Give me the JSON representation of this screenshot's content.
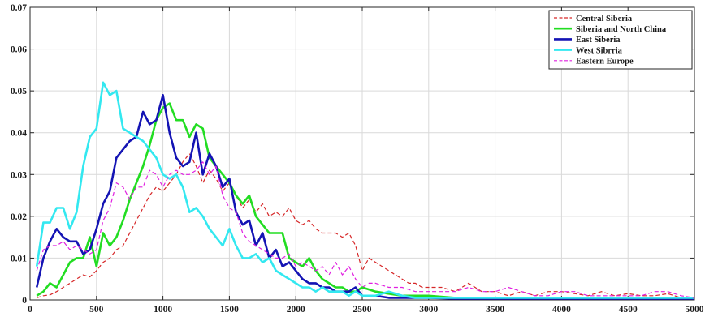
{
  "chart_data": {
    "type": "line",
    "title": "",
    "xlabel": "",
    "ylabel": "",
    "xlim": [
      0,
      5000
    ],
    "ylim": [
      0,
      0.07
    ],
    "grid": true,
    "legend_position": "top-right",
    "xticks": [
      0,
      500,
      1000,
      1500,
      2000,
      2500,
      3000,
      3500,
      4000,
      4500,
      5000
    ],
    "xtick_labels": [
      "0",
      "500",
      "1000",
      "1500",
      "2000",
      "2500",
      "3000",
      "3500",
      "4000",
      "4500",
      "5000"
    ],
    "yticks": [
      0,
      0.01,
      0.02,
      0.03,
      0.04,
      0.05,
      0.06,
      0.07
    ],
    "ytick_labels": [
      "0",
      "0.01",
      "0.02",
      "0.03",
      "0.04",
      "0.05",
      "0.06",
      "0.07"
    ],
    "series": [
      {
        "name": "Central Siberia",
        "color": "#d62728",
        "dash": "dashed",
        "x": [
          50,
          100,
          150,
          200,
          250,
          300,
          350,
          400,
          450,
          500,
          550,
          600,
          650,
          700,
          750,
          800,
          850,
          900,
          950,
          1000,
          1050,
          1100,
          1150,
          1200,
          1250,
          1300,
          1350,
          1400,
          1450,
          1500,
          1550,
          1600,
          1650,
          1700,
          1750,
          1800,
          1850,
          1900,
          1950,
          2000,
          2050,
          2100,
          2150,
          2200,
          2250,
          2300,
          2350,
          2400,
          2450,
          2500,
          2550,
          2600,
          2650,
          2700,
          2750,
          2800,
          2850,
          2900,
          2950,
          3000,
          3100,
          3200,
          3300,
          3400,
          3500,
          3600,
          3700,
          3800,
          3900,
          4000,
          4100,
          4200,
          4300,
          4400,
          4500,
          4600,
          4700,
          4800,
          4900,
          5000
        ],
        "y": [
          0.0005,
          0.001,
          0.0012,
          0.002,
          0.003,
          0.004,
          0.005,
          0.006,
          0.0055,
          0.007,
          0.009,
          0.01,
          0.012,
          0.013,
          0.016,
          0.019,
          0.022,
          0.025,
          0.027,
          0.026,
          0.028,
          0.03,
          0.033,
          0.035,
          0.032,
          0.028,
          0.031,
          0.029,
          0.026,
          0.028,
          0.025,
          0.022,
          0.024,
          0.021,
          0.023,
          0.02,
          0.021,
          0.02,
          0.022,
          0.019,
          0.018,
          0.019,
          0.017,
          0.016,
          0.016,
          0.016,
          0.015,
          0.016,
          0.013,
          0.007,
          0.01,
          0.009,
          0.008,
          0.007,
          0.006,
          0.005,
          0.004,
          0.004,
          0.003,
          0.003,
          0.003,
          0.002,
          0.004,
          0.002,
          0.002,
          0.001,
          0.002,
          0.001,
          0.002,
          0.002,
          0.0015,
          0.001,
          0.002,
          0.001,
          0.0015,
          0.001,
          0.001,
          0.0015,
          0.0005,
          0.0005
        ]
      },
      {
        "name": "Siberia and North China",
        "color": "#22dd22",
        "dash": "solid",
        "x": [
          50,
          100,
          150,
          200,
          250,
          300,
          350,
          400,
          450,
          500,
          550,
          600,
          650,
          700,
          750,
          800,
          850,
          900,
          950,
          1000,
          1050,
          1100,
          1150,
          1200,
          1250,
          1300,
          1350,
          1400,
          1450,
          1500,
          1550,
          1600,
          1650,
          1700,
          1750,
          1800,
          1850,
          1900,
          1950,
          2000,
          2050,
          2100,
          2150,
          2200,
          2250,
          2300,
          2350,
          2400,
          2450,
          2500,
          2600,
          2700,
          2800,
          2900,
          3000,
          3200,
          3400,
          3600,
          3800,
          4000,
          4200,
          4400,
          4600,
          4800,
          5000
        ],
        "y": [
          0.001,
          0.002,
          0.004,
          0.003,
          0.006,
          0.009,
          0.01,
          0.01,
          0.015,
          0.008,
          0.016,
          0.013,
          0.015,
          0.019,
          0.024,
          0.028,
          0.032,
          0.037,
          0.043,
          0.046,
          0.047,
          0.043,
          0.043,
          0.039,
          0.042,
          0.041,
          0.034,
          0.032,
          0.03,
          0.028,
          0.025,
          0.023,
          0.025,
          0.02,
          0.018,
          0.016,
          0.016,
          0.016,
          0.01,
          0.009,
          0.008,
          0.01,
          0.007,
          0.005,
          0.004,
          0.003,
          0.003,
          0.002,
          0.002,
          0.003,
          0.002,
          0.0015,
          0.001,
          0.001,
          0.001,
          0.0005,
          0.0005,
          0.0005,
          0.0005,
          0.0005,
          0.0005,
          0.0005,
          0.0005,
          0.0005,
          0.0005
        ]
      },
      {
        "name": "East Siberia",
        "color": "#1414b4",
        "dash": "solid",
        "x": [
          50,
          100,
          150,
          200,
          250,
          300,
          350,
          400,
          450,
          500,
          550,
          600,
          650,
          700,
          750,
          800,
          850,
          900,
          950,
          1000,
          1050,
          1100,
          1150,
          1200,
          1250,
          1300,
          1350,
          1400,
          1450,
          1500,
          1550,
          1600,
          1650,
          1700,
          1750,
          1800,
          1850,
          1900,
          1950,
          2000,
          2050,
          2100,
          2150,
          2200,
          2250,
          2300,
          2350,
          2400,
          2450,
          2500,
          2600,
          2700,
          2800,
          2900,
          3000,
          3200,
          3400,
          3600,
          3800,
          4000,
          4200,
          4400,
          4600,
          4800,
          5000
        ],
        "y": [
          0.003,
          0.01,
          0.014,
          0.017,
          0.015,
          0.014,
          0.014,
          0.011,
          0.012,
          0.017,
          0.023,
          0.026,
          0.034,
          0.036,
          0.038,
          0.039,
          0.045,
          0.042,
          0.043,
          0.049,
          0.04,
          0.034,
          0.032,
          0.033,
          0.04,
          0.03,
          0.035,
          0.032,
          0.027,
          0.029,
          0.021,
          0.018,
          0.019,
          0.013,
          0.016,
          0.01,
          0.012,
          0.008,
          0.009,
          0.007,
          0.005,
          0.004,
          0.004,
          0.003,
          0.003,
          0.002,
          0.002,
          0.002,
          0.003,
          0.001,
          0.001,
          0.0005,
          0.0005,
          0.0005,
          0.0005,
          0.0003,
          0.0003,
          0.0003,
          0.0003,
          0.0003,
          0.0003,
          0.0003,
          0.0003,
          0.0003,
          0.0003
        ]
      },
      {
        "name": "West Sibrria",
        "color": "#33e8f0",
        "dash": "solid",
        "x": [
          50,
          100,
          150,
          200,
          250,
          300,
          350,
          400,
          450,
          500,
          550,
          600,
          650,
          700,
          750,
          800,
          850,
          900,
          950,
          1000,
          1050,
          1100,
          1150,
          1200,
          1250,
          1300,
          1350,
          1400,
          1450,
          1500,
          1550,
          1600,
          1650,
          1700,
          1750,
          1800,
          1850,
          1900,
          1950,
          2000,
          2050,
          2100,
          2150,
          2200,
          2250,
          2300,
          2350,
          2400,
          2450,
          2500,
          2600,
          2700,
          2800,
          2900,
          3000,
          3200,
          3400,
          3600,
          3800,
          4000,
          4200,
          4400,
          4600,
          4800,
          5000
        ],
        "y": [
          0.008,
          0.0185,
          0.0185,
          0.022,
          0.022,
          0.017,
          0.021,
          0.032,
          0.039,
          0.041,
          0.052,
          0.049,
          0.05,
          0.041,
          0.04,
          0.039,
          0.038,
          0.036,
          0.034,
          0.03,
          0.029,
          0.03,
          0.027,
          0.021,
          0.022,
          0.02,
          0.017,
          0.015,
          0.013,
          0.017,
          0.013,
          0.01,
          0.01,
          0.011,
          0.009,
          0.01,
          0.007,
          0.006,
          0.005,
          0.004,
          0.003,
          0.003,
          0.002,
          0.003,
          0.002,
          0.002,
          0.002,
          0.001,
          0.002,
          0.001,
          0.001,
          0.002,
          0.001,
          0.0005,
          0.0005,
          0.0005,
          0.0005,
          0.0005,
          0.0005,
          0.0005,
          0.0005,
          0.0005,
          0.0005,
          0.0005,
          0.0005
        ]
      },
      {
        "name": "Eastern Europe",
        "color": "#e020e0",
        "dash": "dashed",
        "x": [
          50,
          100,
          150,
          200,
          250,
          300,
          350,
          400,
          450,
          500,
          550,
          600,
          650,
          700,
          750,
          800,
          850,
          900,
          950,
          1000,
          1050,
          1100,
          1150,
          1200,
          1250,
          1300,
          1350,
          1400,
          1450,
          1500,
          1550,
          1600,
          1650,
          1700,
          1750,
          1800,
          1850,
          1900,
          1950,
          2000,
          2050,
          2100,
          2150,
          2200,
          2250,
          2300,
          2350,
          2400,
          2450,
          2500,
          2550,
          2600,
          2700,
          2800,
          2900,
          3000,
          3100,
          3200,
          3300,
          3400,
          3500,
          3600,
          3700,
          3800,
          3900,
          4000,
          4100,
          4200,
          4300,
          4400,
          4500,
          4600,
          4700,
          4800,
          4900,
          5000
        ],
        "y": [
          0.007,
          0.012,
          0.013,
          0.013,
          0.014,
          0.012,
          0.013,
          0.012,
          0.011,
          0.012,
          0.019,
          0.022,
          0.028,
          0.027,
          0.024,
          0.027,
          0.027,
          0.031,
          0.03,
          0.027,
          0.03,
          0.031,
          0.03,
          0.03,
          0.031,
          0.033,
          0.03,
          0.032,
          0.025,
          0.022,
          0.021,
          0.016,
          0.014,
          0.013,
          0.012,
          0.011,
          0.01,
          0.01,
          0.011,
          0.008,
          0.009,
          0.008,
          0.007,
          0.008,
          0.006,
          0.009,
          0.006,
          0.008,
          0.005,
          0.003,
          0.004,
          0.004,
          0.003,
          0.003,
          0.002,
          0.002,
          0.002,
          0.002,
          0.003,
          0.002,
          0.002,
          0.003,
          0.002,
          0.001,
          0.001,
          0.002,
          0.002,
          0.001,
          0.001,
          0.001,
          0.001,
          0.001,
          0.002,
          0.002,
          0.001,
          0.0005
        ]
      }
    ]
  }
}
